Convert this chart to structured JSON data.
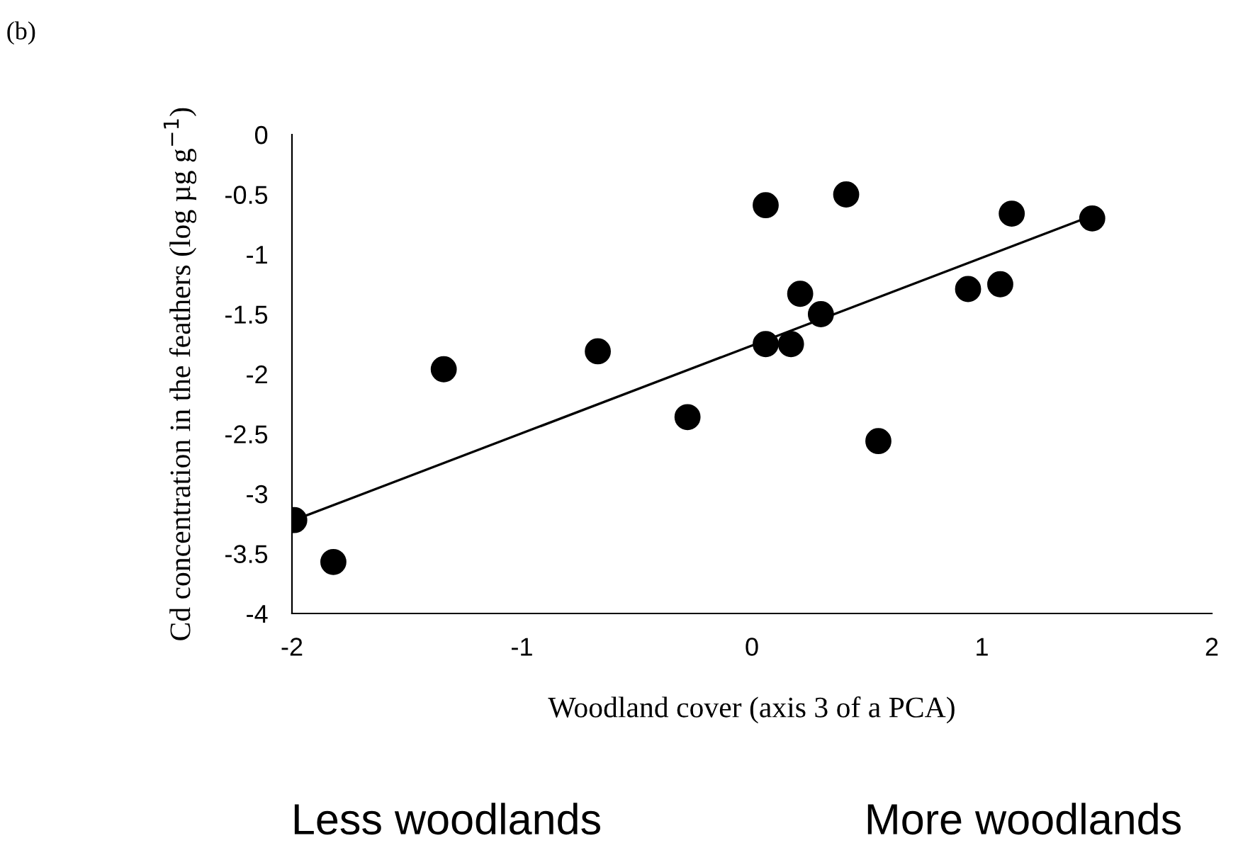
{
  "chart_data": {
    "type": "scatter",
    "xlabel": "Woodland cover (axis 3 of a PCA)",
    "ylabel": "Cd concentration in the feathers (log µg g$^{−1}$)",
    "annotations": [
      "(b)",
      "Less woodlands",
      "More woodlands"
    ],
    "xlim": [
      -2,
      2
    ],
    "xticks": [
      -2,
      -1,
      0,
      1,
      2
    ],
    "ylim": [
      -4,
      0
    ],
    "yticks": [
      -4,
      -3.5,
      -3,
      -2.5,
      -2,
      -1.5,
      -1,
      -0.5,
      0
    ],
    "grid": false,
    "series": [
      {
        "type": "scatter",
        "marker": "circle",
        "color": "#000000",
        "x": [
          -1.99,
          -1.82,
          -1.34,
          -0.67,
          -0.28,
          0.06,
          0.06,
          0.17,
          0.21,
          0.3,
          0.41,
          0.55,
          0.94,
          1.08,
          1.13,
          1.48
        ],
        "values": [
          -3.22,
          -3.57,
          -1.96,
          -1.81,
          -2.36,
          -0.59,
          -1.75,
          -1.75,
          -1.33,
          -1.5,
          -0.5,
          -2.56,
          -1.29,
          -1.25,
          -0.66,
          -0.7
        ]
      },
      {
        "type": "line",
        "color": "#000000",
        "x": [
          -1.99,
          1.49
        ],
        "values": [
          -3.22,
          -0.67
        ],
        "line_style": "solid",
        "marker": "none"
      }
    ]
  }
}
